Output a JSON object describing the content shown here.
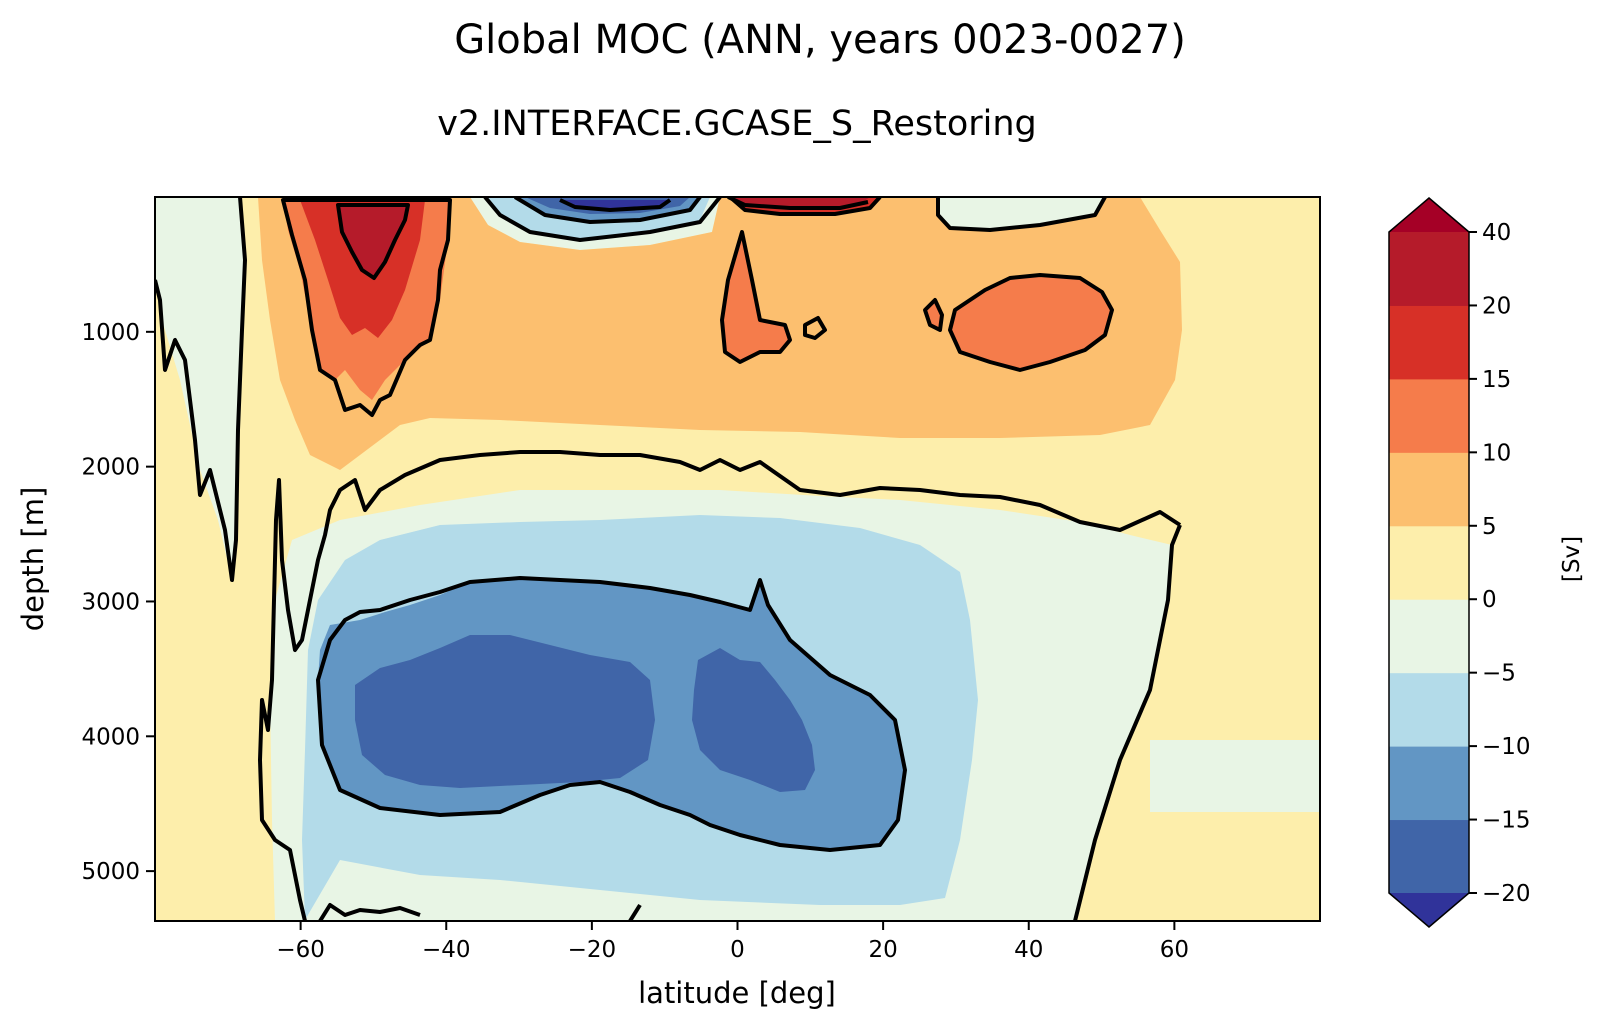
{
  "chart_data": {
    "type": "contour",
    "title": "Global MOC (ANN, years 0023-0027)",
    "subtitle": "v2.INTERFACE.GCASE_S_Restoring",
    "xlabel": "latitude [deg]",
    "ylabel": "depth [m]",
    "xlim": [
      -80,
      80
    ],
    "ylim": [
      5370,
      0
    ],
    "x_ticks": [
      -60,
      -40,
      -20,
      0,
      20,
      40,
      60
    ],
    "x_tick_labels": [
      "−60",
      "−40",
      "−20",
      "0",
      "20",
      "40",
      "60"
    ],
    "y_ticks": [
      1000,
      2000,
      3000,
      4000,
      5000
    ],
    "y_tick_labels": [
      "1000",
      "2000",
      "3000",
      "4000",
      "5000"
    ],
    "colorbar": {
      "label": "[Sv]",
      "levels": [
        -20,
        -15,
        -10,
        -5,
        0,
        5,
        10,
        15,
        20,
        40
      ],
      "tick_labels": [
        "−20",
        "−15",
        "−10",
        "−5",
        "0",
        "5",
        "10",
        "15",
        "20",
        "40"
      ],
      "colors": [
        "#4065a8",
        "#6296c4",
        "#b3dbe9",
        "#e8f5e5",
        "#fdeeab",
        "#fcbf6f",
        "#f57c4b",
        "#d73027",
        "#b51b2a"
      ],
      "under_color": "#30339a",
      "over_color": "#a50026",
      "extend": "both"
    },
    "regions": [
      {
        "name": "southern-ocean-positive-cell",
        "lat_range": [
          -58,
          -40
        ],
        "depth_range": [
          0,
          1500
        ],
        "peak_sv": 30
      },
      {
        "name": "near-surface-negative-cell",
        "lat_range": [
          -32,
          -1
        ],
        "depth_range": [
          0,
          250
        ],
        "peak_sv": -25
      },
      {
        "name": "near-surface-positive-cell",
        "lat_range": [
          0,
          24
        ],
        "depth_range": [
          0,
          120
        ],
        "peak_sv": 22
      },
      {
        "name": "tropical-positive-tongue",
        "lat_range": [
          0,
          15
        ],
        "depth_range": [
          300,
          1250
        ],
        "peak_sv": 12
      },
      {
        "name": "northern-positive-cell",
        "lat_range": [
          30,
          52
        ],
        "depth_range": [
          600,
          1320
        ],
        "peak_sv": 12
      },
      {
        "name": "bottom-negative-cell",
        "lat_range": [
          -56,
          25
        ],
        "depth_range": [
          2860,
          4910
        ],
        "peak_sv": -18
      }
    ]
  }
}
